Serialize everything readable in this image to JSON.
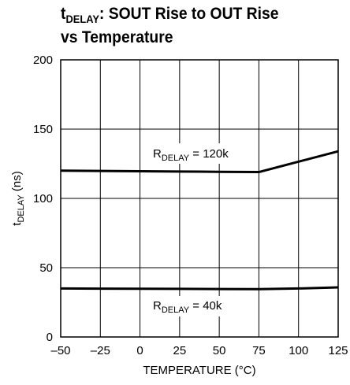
{
  "title": {
    "main": "t",
    "main_sub": "DELAY",
    "rest_line1": ": SOUT Rise to OUT Rise",
    "line2": "vs Temperature"
  },
  "chart_data": {
    "type": "line",
    "xlabel": "TEMPERATURE (°C)",
    "ylabel": {
      "main": "t",
      "sub": "DELAY",
      "rest": " (ns)"
    },
    "xlim": [
      -50,
      125
    ],
    "ylim": [
      0,
      200
    ],
    "xticks": [
      -50,
      -25,
      0,
      25,
      50,
      75,
      100,
      125
    ],
    "xtick_labels": [
      "–50",
      "–25",
      "0",
      "25",
      "50",
      "75",
      "100",
      "125"
    ],
    "yticks": [
      0,
      50,
      100,
      150,
      200
    ],
    "grid": true,
    "series": [
      {
        "name": {
          "main": "R",
          "sub": "DELAY",
          "rest": " = 120k"
        },
        "x": [
          -50,
          -25,
          0,
          25,
          50,
          75,
          100,
          125
        ],
        "y": [
          120,
          119.8,
          119.6,
          119.4,
          119.2,
          119,
          126.5,
          134
        ]
      },
      {
        "name": {
          "main": "R",
          "sub": "DELAY",
          "rest": " = 40k"
        },
        "x": [
          -50,
          -25,
          0,
          25,
          50,
          75,
          100,
          125
        ],
        "y": [
          35,
          34.9,
          34.8,
          34.7,
          34.6,
          34.5,
          35,
          35.8
        ]
      }
    ]
  }
}
